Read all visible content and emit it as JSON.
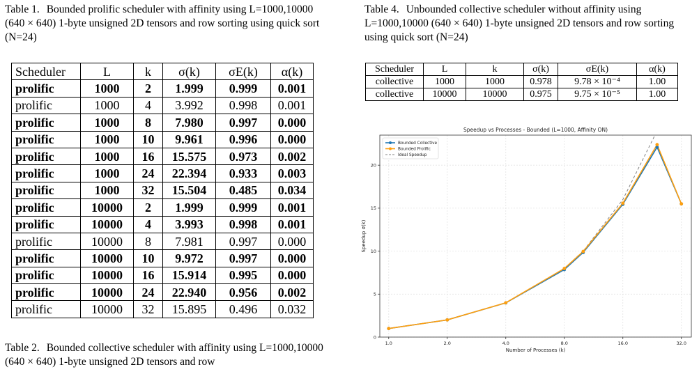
{
  "table1": {
    "label": "Table 1.",
    "caption": "Bounded prolific scheduler with affinity using L=1000,10000 (640 × 640) 1-byte unsigned 2D tensors and row sorting using quick sort (N=24)",
    "headers": [
      "Scheduler",
      "L",
      "k",
      "σ(k)",
      "σE(k)",
      "α(k)"
    ],
    "rows": [
      {
        "bold": true,
        "cells": [
          "prolific",
          "1000",
          "2",
          "1.999",
          "0.999",
          "0.001"
        ]
      },
      {
        "bold": false,
        "cells": [
          "prolific",
          "1000",
          "4",
          "3.992",
          "0.998",
          "0.001"
        ]
      },
      {
        "bold": true,
        "cells": [
          "prolific",
          "1000",
          "8",
          "7.980",
          "0.997",
          "0.000"
        ]
      },
      {
        "bold": true,
        "cells": [
          "prolific",
          "1000",
          "10",
          "9.961",
          "0.996",
          "0.000"
        ]
      },
      {
        "bold": true,
        "cells": [
          "prolific",
          "1000",
          "16",
          "15.575",
          "0.973",
          "0.002"
        ]
      },
      {
        "bold": true,
        "cells": [
          "prolific",
          "1000",
          "24",
          "22.394",
          "0.933",
          "0.003"
        ]
      },
      {
        "bold": true,
        "cells": [
          "prolific",
          "1000",
          "32",
          "15.504",
          "0.485",
          "0.034"
        ]
      },
      {
        "bold": true,
        "cells": [
          "prolific",
          "10000",
          "2",
          "1.999",
          "0.999",
          "0.001"
        ]
      },
      {
        "bold": true,
        "cells": [
          "prolific",
          "10000",
          "4",
          "3.993",
          "0.998",
          "0.001"
        ]
      },
      {
        "bold": false,
        "cells": [
          "prolific",
          "10000",
          "8",
          "7.981",
          "0.997",
          "0.000"
        ]
      },
      {
        "bold": true,
        "cells": [
          "prolific",
          "10000",
          "10",
          "9.972",
          "0.997",
          "0.000"
        ]
      },
      {
        "bold": true,
        "cells": [
          "prolific",
          "10000",
          "16",
          "15.914",
          "0.995",
          "0.000"
        ]
      },
      {
        "bold": true,
        "cells": [
          "prolific",
          "10000",
          "24",
          "22.940",
          "0.956",
          "0.002"
        ]
      },
      {
        "bold": false,
        "cells": [
          "prolific",
          "10000",
          "32",
          "15.895",
          "0.496",
          "0.032"
        ]
      }
    ]
  },
  "table2": {
    "label": "Table 2.",
    "caption": "Bounded collective scheduler with affinity using L=1000,10000 (640 × 640) 1-byte unsigned 2D tensors and row"
  },
  "table4": {
    "label": "Table 4.",
    "caption": "Unbounded collective scheduler without affinity using L=1000,10000 (640 × 640) 1-byte unsigned 2D tensors and row sorting using quick sort (N=24)",
    "headers": [
      "Scheduler",
      "L",
      "k",
      "σ(k)",
      "σE(k)",
      "α(k)"
    ],
    "rows": [
      [
        "collective",
        "1000",
        "1000",
        "0.978",
        "9.78 × 10⁻⁴",
        "1.00"
      ],
      [
        "collective",
        "10000",
        "10000",
        "0.975",
        "9.75 × 10⁻⁵",
        "1.00"
      ]
    ]
  },
  "chart_data": {
    "type": "line",
    "title": "Speedup vs Processes - Bounded (L=1000, Affinity ON)",
    "xlabel": "Number of Processes (k)",
    "ylabel": "Speedup σ(k)",
    "x_scale": "log2",
    "xlim": [
      0.9,
      36
    ],
    "ylim": [
      0,
      23.5
    ],
    "xticks": [
      1.0,
      2.0,
      4.0,
      8.0,
      16.0,
      32.0
    ],
    "yticks": [
      0,
      5,
      10,
      15,
      20
    ],
    "grid": true,
    "legend": "top-left",
    "x": [
      1,
      2,
      4,
      8,
      10,
      16,
      24,
      32
    ],
    "series": [
      {
        "name": "Bounded Collective",
        "color": "#1f77b4",
        "style": "solid",
        "marker": "circle",
        "values": [
          1.0,
          2.0,
          3.98,
          7.85,
          9.85,
          15.45,
          22.1,
          15.5
        ]
      },
      {
        "name": "Bounded Prolific",
        "color": "#ff9f0e",
        "style": "solid",
        "marker": "circle",
        "values": [
          1.0,
          1.999,
          3.992,
          7.98,
          9.961,
          15.575,
          22.394,
          15.504
        ]
      },
      {
        "name": "Ideal Speedup",
        "color": "#808080",
        "style": "dashed",
        "marker": "none",
        "values": [
          1,
          2,
          4,
          8,
          10,
          16,
          24,
          32
        ]
      }
    ]
  }
}
